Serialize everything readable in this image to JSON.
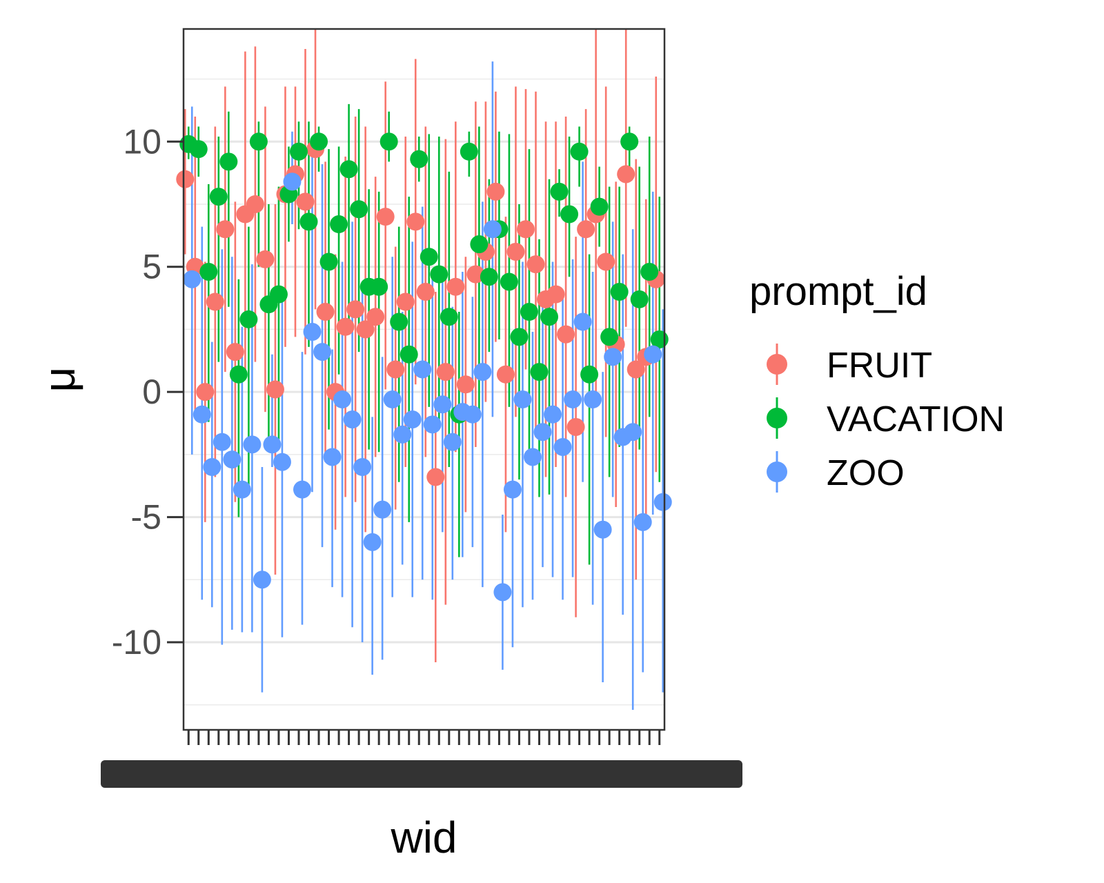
{
  "chart_data": {
    "type": "scatter",
    "subtype": "pointrange",
    "title": "",
    "xlabel": "wid",
    "ylabel": "μ",
    "ylim": [
      -13.5,
      14.5
    ],
    "y_ticks": [
      -10,
      -5,
      0,
      5,
      10
    ],
    "y_tick_labels": [
      "-10",
      "-5",
      "0",
      "5",
      "10"
    ],
    "grid": true,
    "legend": {
      "title": "prompt_id",
      "position": "right",
      "entries": [
        "FRUIT",
        "VACATION",
        "ZOO"
      ]
    },
    "x_tick_count": 48,
    "x_tick_labels_note": "overlapping unreadable worker-id labels",
    "series": [
      {
        "name": "FRUIT",
        "color": "#F8766D",
        "mean": [
          8.5,
          5.0,
          0.0,
          3.6,
          6.5,
          1.6,
          7.1,
          7.5,
          5.3,
          0.1,
          7.9,
          8.7,
          7.6,
          9.7,
          3.2,
          0.0,
          2.6,
          3.3,
          2.5,
          3.0,
          7.0,
          0.9,
          3.6,
          6.8,
          4.0,
          -3.4,
          0.8,
          4.2,
          0.3,
          4.7,
          5.6,
          8.0,
          0.7,
          5.6,
          6.5,
          5.1,
          3.7,
          3.9,
          2.3,
          -1.4,
          6.5,
          7.1,
          5.2,
          1.9,
          8.7,
          0.9,
          1.4,
          4.5
        ],
        "lower": [
          5.5,
          -1.0,
          -5.2,
          -3.4,
          0.8,
          -4.4,
          0.6,
          1.2,
          -0.8,
          -7.3,
          1.8,
          2.2,
          1.5,
          3.3,
          -2.8,
          -5.5,
          -4.2,
          -4.4,
          -5.6,
          -2.6,
          0.1,
          -4.7,
          -3.0,
          0.3,
          -2.6,
          -10.8,
          -8.5,
          -2.4,
          -4.8,
          -2.2,
          -0.4,
          2.0,
          -5.6,
          -1.0,
          0.9,
          -1.8,
          -3.4,
          -3.0,
          -4.2,
          -9.0,
          0.8,
          -0.5,
          -1.8,
          -4.6,
          2.6,
          -7.5,
          -4.9,
          -3.2
        ],
        "upper": [
          11.3,
          11.0,
          5.2,
          10.6,
          12.2,
          7.6,
          13.6,
          13.8,
          11.4,
          7.5,
          12.2,
          12.2,
          13.7,
          16.1,
          9.2,
          5.5,
          9.4,
          11.0,
          10.6,
          8.6,
          12.4,
          5.8,
          10.2,
          13.3,
          10.6,
          4.0,
          10.1,
          10.8,
          5.4,
          11.6,
          11.6,
          12.0,
          7.0,
          12.2,
          12.1,
          12.0,
          10.8,
          10.8,
          11.0,
          6.2,
          11.3,
          14.7,
          12.2,
          8.4,
          14.8,
          9.3,
          7.7,
          12.6
        ]
      },
      {
        "name": "VACATION",
        "color": "#00BA38",
        "mean": [
          9.9,
          9.7,
          4.8,
          7.8,
          9.2,
          0.7,
          2.9,
          10.0,
          3.5,
          3.9,
          7.9,
          9.6,
          6.8,
          10.0,
          5.2,
          6.7,
          8.9,
          7.3,
          4.2,
          4.2,
          10.0,
          2.8,
          1.5,
          9.3,
          5.4,
          4.7,
          3.0,
          -0.9,
          9.6,
          5.9,
          4.6,
          6.5,
          4.4,
          2.2,
          3.2,
          0.8,
          3.0,
          8.0,
          7.1,
          9.6,
          0.7,
          7.4,
          2.2,
          4.0,
          10.0,
          3.7,
          4.8,
          2.1
        ],
        "lower": [
          9.3,
          8.6,
          -1.2,
          1.2,
          3.4,
          -5.0,
          -3.9,
          5.0,
          -2.3,
          -1.9,
          6.0,
          6.5,
          1.8,
          8.8,
          -1.5,
          0.7,
          2.6,
          1.6,
          -2.3,
          -2.4,
          9.2,
          -3.6,
          -5.2,
          8.4,
          -0.6,
          -1.3,
          -3.0,
          -6.6,
          8.6,
          -1.0,
          1.6,
          2.1,
          -0.6,
          -3.5,
          -2.9,
          -4.2,
          -4.1,
          7.0,
          4.6,
          8.2,
          -6.9,
          5.8,
          -3.4,
          -2.2,
          9.0,
          -2.3,
          -1.0,
          -3.6
        ],
        "upper": [
          10.6,
          10.6,
          8.3,
          10.2,
          11.2,
          4.5,
          6.6,
          10.8,
          7.5,
          8.2,
          9.8,
          10.8,
          10.8,
          10.6,
          9.7,
          9.8,
          11.5,
          11.3,
          8.1,
          8.0,
          11.2,
          6.6,
          7.8,
          10.2,
          10.3,
          10.2,
          8.8,
          3.2,
          10.4,
          10.6,
          8.5,
          10.4,
          10.3,
          7.5,
          9.7,
          6.1,
          8.5,
          8.9,
          10.2,
          10.6,
          5.5,
          9.0,
          8.2,
          8.2,
          10.6,
          9.0,
          10.2,
          7.8
        ]
      },
      {
        "name": "ZOO",
        "color": "#619CFF",
        "mean": [
          4.5,
          -0.9,
          -3.0,
          -2.0,
          -2.7,
          -3.9,
          -2.1,
          -7.5,
          -2.1,
          -2.8,
          8.4,
          -3.9,
          2.4,
          1.6,
          -2.6,
          -0.3,
          -1.1,
          -3.0,
          -6.0,
          -4.7,
          -0.3,
          -1.7,
          -1.1,
          0.9,
          -1.3,
          -0.5,
          -2.0,
          -0.8,
          -0.9,
          0.8,
          6.5,
          -8.0,
          -3.9,
          -0.3,
          -2.6,
          -1.6,
          -0.9,
          -2.2,
          -0.3,
          2.8,
          -0.3,
          -5.5,
          1.4,
          -1.8,
          -1.6,
          -5.2,
          1.5,
          -4.4
        ],
        "lower": [
          -2.5,
          -8.3,
          -8.6,
          -10.1,
          -9.5,
          -9.6,
          -9.6,
          -12.0,
          -3.0,
          -9.8,
          6.7,
          -9.3,
          -4.0,
          -6.2,
          -7.8,
          -8.2,
          -9.4,
          -10.0,
          -11.3,
          -10.7,
          -8.2,
          -6.9,
          -8.2,
          -7.5,
          -8.3,
          -5.6,
          -7.5,
          -6.6,
          -6.2,
          -7.8,
          -1.0,
          -11.1,
          -10.2,
          -8.6,
          -8.3,
          -7.0,
          -7.4,
          -8.3,
          -7.4,
          -3.6,
          -8.5,
          -11.6,
          -4.2,
          -8.9,
          -12.7,
          -11.2,
          -4.9,
          -12.0
        ],
        "upper": [
          11.4,
          6.6,
          2.0,
          5.7,
          5.4,
          2.6,
          5.1,
          -3.0,
          1.5,
          4.0,
          10.4,
          1.6,
          10.2,
          9.1,
          1.7,
          5.2,
          6.8,
          4.0,
          -1.0,
          1.4,
          5.4,
          3.2,
          6.0,
          7.4,
          4.5,
          4.5,
          3.4,
          4.8,
          3.8,
          7.6,
          13.2,
          -4.9,
          2.0,
          5.2,
          2.4,
          3.5,
          5.2,
          4.0,
          5.3,
          9.2,
          4.8,
          0.8,
          6.8,
          5.5,
          6.5,
          1.5,
          8.0,
          3.3
        ]
      }
    ]
  }
}
